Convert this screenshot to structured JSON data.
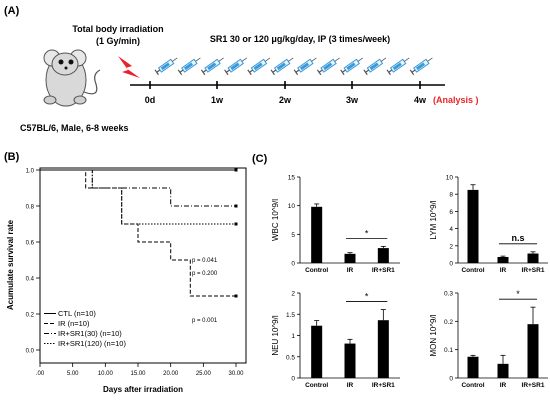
{
  "panels": {
    "a": "(A)",
    "b": "(B)",
    "c": "(C)"
  },
  "schematic": {
    "irradiation_title": "Total body irradiation",
    "irradiation_dose": "(1 Gy/min)",
    "treatment": "SR1 30 or 120 μg/kg/day, IP (3 times/week)",
    "mouse_label": "C57BL/6, Male, 6-8 weeks",
    "timepoints": [
      "0d",
      "1w",
      "2w",
      "3w",
      "4w"
    ],
    "analysis_label": "(Analysis )",
    "colors": {
      "analysis": "#e8242a",
      "lightning": "#e8242a",
      "syringe": "#3a9ad9"
    },
    "icons": [
      "mouse-icon",
      "lightning-icon",
      "syringe-icon"
    ]
  },
  "chart_data": [
    {
      "type": "line",
      "style": "kaplan-meier step",
      "ylabel": "Acumulate survival rate",
      "xlabel": "Days after irradiation",
      "xticks": [
        ".00",
        "5.00",
        "10.00",
        "15.00",
        "20.00",
        "25.00",
        "30.00"
      ],
      "xlim": [
        0,
        30
      ],
      "ylim": [
        0,
        1.0
      ],
      "yticks": [
        "0.0",
        "0.2",
        "0.4",
        "0.6",
        "0.8",
        "1.0"
      ],
      "series": [
        {
          "name": "CTL (n=10)",
          "dash": "solid",
          "x": [
            0,
            30
          ],
          "y": [
            1.0,
            1.0
          ]
        },
        {
          "name": "IR (n=10)",
          "dash": "dashed",
          "x": [
            0,
            7,
            7,
            12.5,
            12.5,
            15,
            15,
            20,
            20,
            23,
            23,
            30
          ],
          "y": [
            1.0,
            1.0,
            0.9,
            0.9,
            0.7,
            0.7,
            0.6,
            0.6,
            0.5,
            0.5,
            0.3,
            0.3
          ]
        },
        {
          "name": "IR+SR1(30) (n=10)",
          "dash": "dashdot",
          "x": [
            0,
            8,
            8,
            20,
            20,
            30
          ],
          "y": [
            1.0,
            1.0,
            0.9,
            0.9,
            0.8,
            0.8
          ]
        },
        {
          "name": "IR+SR1(120) (n=10)",
          "dash": "dotted",
          "x": [
            0,
            8,
            8,
            12.5,
            12.5,
            30
          ],
          "y": [
            1.0,
            1.0,
            0.9,
            0.9,
            0.7,
            0.7
          ]
        }
      ],
      "annotations": [
        "p = 0.041",
        "p = 0.200",
        "p = 0.001"
      ],
      "legend_position": "bottom-left"
    },
    {
      "type": "bar",
      "ylabel": "WBC 10^9/l",
      "categories": [
        "Control",
        "IR",
        "IR+SR1"
      ],
      "values": [
        9.8,
        1.6,
        2.6
      ],
      "errors": [
        0.5,
        0.2,
        0.3
      ],
      "ylim": [
        0,
        15
      ],
      "yticks": [
        "0",
        "5",
        "10",
        "15"
      ],
      "comparison": {
        "from": "IR",
        "to": "IR+SR1",
        "label": "*"
      }
    },
    {
      "type": "bar",
      "ylabel": "LYM 10^9/l",
      "categories": [
        "Control",
        "IR",
        "IR+SR1"
      ],
      "values": [
        8.5,
        0.7,
        1.1
      ],
      "errors": [
        0.6,
        0.1,
        0.2
      ],
      "ylim": [
        0,
        10
      ],
      "yticks": [
        "0",
        "2",
        "4",
        "6",
        "8",
        "10"
      ],
      "comparison": {
        "from": "IR",
        "to": "IR+SR1",
        "label": "n.s"
      }
    },
    {
      "type": "bar",
      "ylabel": "NEU 10^9/l",
      "categories": [
        "Control",
        "IR",
        "IR+SR1"
      ],
      "values": [
        1.23,
        0.81,
        1.36
      ],
      "errors": [
        0.12,
        0.1,
        0.25
      ],
      "ylim": [
        0,
        2.0
      ],
      "yticks": [
        "0",
        "0.5",
        "1",
        "1.5",
        "2"
      ],
      "comparison": {
        "from": "IR",
        "to": "IR+SR1",
        "label": "*"
      }
    },
    {
      "type": "bar",
      "ylabel": "MON 10^9/l",
      "categories": [
        "Control",
        "IR",
        "IR+SR1"
      ],
      "values": [
        0.075,
        0.05,
        0.19
      ],
      "errors": [
        0.005,
        0.03,
        0.06
      ],
      "ylim": [
        0,
        0.3
      ],
      "yticks": [
        "0",
        "0.1",
        "0.2",
        "0.3"
      ],
      "comparison": {
        "from": "IR",
        "to": "IR+SR1",
        "label": "*"
      }
    }
  ]
}
